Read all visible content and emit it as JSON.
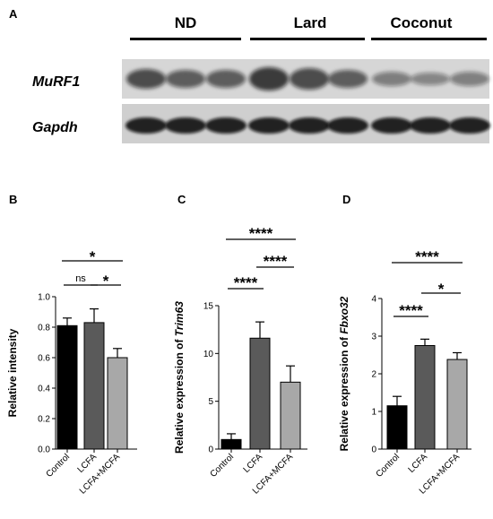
{
  "blot": {
    "panel_letter": "A",
    "groups": [
      "ND",
      "Lard",
      "Coconut"
    ],
    "rows": [
      "MuRF1",
      "Gapdh"
    ]
  },
  "colors": {
    "control": "#000000",
    "lcfa": "#5a5a5a",
    "lcfa_mcfa": "#a8a8a8"
  },
  "chart_data": [
    {
      "type": "bar",
      "panel_letter": "B",
      "categories": [
        "Control",
        "LCFA",
        "LCFA+MCFA"
      ],
      "values": [
        0.81,
        0.83,
        0.6
      ],
      "errors": [
        0.05,
        0.09,
        0.06
      ],
      "ylabel": "Relative intensity",
      "ylim": [
        0,
        1.0
      ],
      "yticks": [
        "0.0",
        "0.2",
        "0.4",
        "0.6",
        "0.8",
        "1.0"
      ],
      "yticks_values": [
        0,
        0.2,
        0.4,
        0.6,
        0.8,
        1.0
      ],
      "significance": [
        {
          "from": 0,
          "to": 1,
          "label": "ns"
        },
        {
          "from": 1,
          "to": 2,
          "label": "*"
        },
        {
          "from": 0,
          "to": 2,
          "label": "*"
        }
      ]
    },
    {
      "type": "bar",
      "panel_letter": "C",
      "categories": [
        "Control",
        "LCFA",
        "LCFA+MCFA"
      ],
      "values": [
        1.0,
        11.6,
        7.0
      ],
      "errors": [
        0.6,
        1.7,
        1.7
      ],
      "ylabel_prefix": "Relative expression of ",
      "ylabel_gene": "Trim63",
      "ylim": [
        0,
        15
      ],
      "yticks": [
        "0",
        "5",
        "10",
        "15"
      ],
      "yticks_values": [
        0,
        5,
        10,
        15
      ],
      "significance": [
        {
          "from": 0,
          "to": 1,
          "label": "****"
        },
        {
          "from": 1,
          "to": 2,
          "label": "****"
        },
        {
          "from": 0,
          "to": 2,
          "label": "****"
        }
      ]
    },
    {
      "type": "bar",
      "panel_letter": "D",
      "categories": [
        "Control",
        "LCFA",
        "LCFA+MCFA"
      ],
      "values": [
        1.15,
        2.75,
        2.38
      ],
      "errors": [
        0.25,
        0.17,
        0.18
      ],
      "ylabel_prefix": "Relative expression of ",
      "ylabel_gene": "Fbxo32",
      "ylim": [
        0,
        4
      ],
      "yticks": [
        "0",
        "1",
        "2",
        "3",
        "4"
      ],
      "yticks_values": [
        0,
        1,
        2,
        3,
        4
      ],
      "significance": [
        {
          "from": 0,
          "to": 1,
          "label": "****"
        },
        {
          "from": 1,
          "to": 2,
          "label": "*"
        },
        {
          "from": 0,
          "to": 2,
          "label": "****"
        }
      ]
    }
  ]
}
